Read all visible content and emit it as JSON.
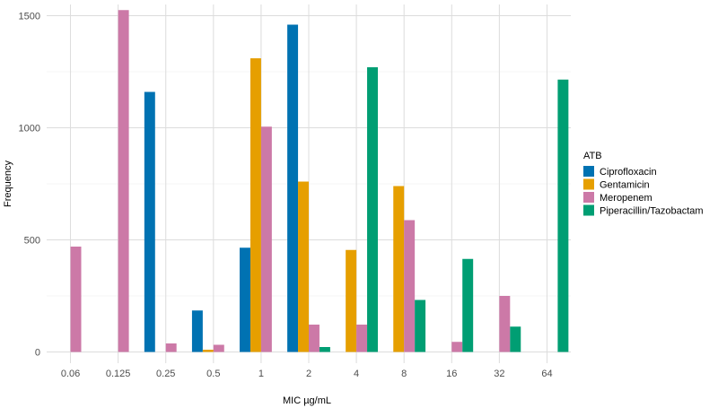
{
  "chart_data": {
    "type": "bar",
    "xlabel": "MIC µg/mL",
    "ylabel": "Frequency",
    "ylim": [
      -50,
      1550
    ],
    "yticks": [
      0,
      500,
      1000,
      1500
    ],
    "grid": true,
    "legend_position": "right",
    "legend_title": "ATB",
    "categories": [
      "0.06",
      "0.125",
      "0.25",
      "0.5",
      "1",
      "2",
      "4",
      "8",
      "16",
      "32",
      "64"
    ],
    "series": [
      {
        "name": "Ciprofloxacin",
        "color": "#0072B2",
        "values": [
          null,
          null,
          1160,
          185,
          465,
          1460,
          null,
          null,
          null,
          null,
          null
        ]
      },
      {
        "name": "Gentamicin",
        "color": "#E69F00",
        "values": [
          null,
          null,
          null,
          10,
          1310,
          760,
          455,
          740,
          null,
          null,
          null
        ]
      },
      {
        "name": "Meropenem",
        "color": "#CC79A7",
        "values": [
          470,
          1525,
          38,
          32,
          1005,
          122,
          122,
          588,
          45,
          250,
          null
        ]
      },
      {
        "name": "Piperacillin/Tazobactam",
        "color": "#009E73",
        "values": [
          null,
          null,
          null,
          null,
          null,
          22,
          1270,
          232,
          415,
          113,
          1215
        ]
      }
    ]
  }
}
